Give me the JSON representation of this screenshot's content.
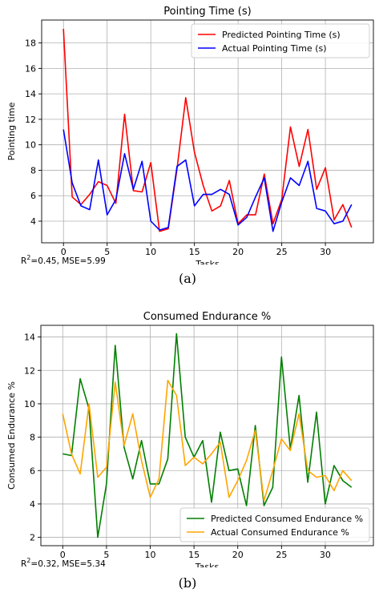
{
  "chart_data": [
    {
      "type": "line",
      "title": "Pointing Time (s)",
      "xlabel": "Tasks",
      "ylabel": "Pointing time",
      "xlim": [
        -2.5,
        35.5
      ],
      "ylim": [
        2.3,
        19.8
      ],
      "xticks": [
        0,
        5,
        10,
        15,
        20,
        25,
        30
      ],
      "yticks": [
        4,
        6,
        8,
        10,
        12,
        14,
        16,
        18
      ],
      "grid": true,
      "legend_position": "top-right",
      "x": [
        0,
        1,
        2,
        3,
        4,
        5,
        6,
        7,
        8,
        9,
        10,
        11,
        12,
        13,
        14,
        15,
        16,
        17,
        18,
        19,
        20,
        21,
        22,
        23,
        24,
        25,
        26,
        27,
        28,
        29,
        30,
        31,
        32,
        33
      ],
      "series": [
        {
          "name": "Predicted Pointing Time (s)",
          "color": "#ff0000",
          "values": [
            19.1,
            5.9,
            5.3,
            6.1,
            7.1,
            6.8,
            5.4,
            12.4,
            6.4,
            6.3,
            8.6,
            3.2,
            3.4,
            8.1,
            13.7,
            9.4,
            6.8,
            4.8,
            5.2,
            7.2,
            3.8,
            4.5,
            4.5,
            7.7,
            3.8,
            5.7,
            11.4,
            8.3,
            11.2,
            6.5,
            8.2,
            4.1,
            5.3,
            3.5
          ]
        },
        {
          "name": "Actual Pointing Time (s)",
          "color": "#0000ff",
          "values": [
            11.2,
            7.0,
            5.2,
            4.9,
            8.8,
            4.5,
            5.7,
            9.3,
            6.5,
            8.7,
            4.0,
            3.3,
            3.5,
            8.3,
            8.8,
            5.2,
            6.1,
            6.1,
            6.5,
            6.1,
            3.7,
            4.3,
            5.9,
            7.4,
            3.2,
            5.5,
            7.4,
            6.8,
            8.7,
            5.0,
            4.8,
            3.8,
            4.0,
            5.3
          ]
        }
      ],
      "stats": {
        "r2_label": "R",
        "r2_exp": "2",
        "r2_value": "=0.45,  MSE=5.99"
      },
      "caption": "(a)"
    },
    {
      "type": "line",
      "title": "Consumed Endurance %",
      "xlabel": "Tasks",
      "ylabel": "Consumed Endurance %",
      "xlim": [
        -2.5,
        35.5
      ],
      "ylim": [
        1.5,
        14.7
      ],
      "xticks": [
        0,
        5,
        10,
        15,
        20,
        25,
        30
      ],
      "yticks": [
        2,
        4,
        6,
        8,
        10,
        12,
        14
      ],
      "grid": true,
      "legend_position": "bottom-right",
      "x": [
        0,
        1,
        2,
        3,
        4,
        5,
        6,
        7,
        8,
        9,
        10,
        11,
        12,
        13,
        14,
        15,
        16,
        17,
        18,
        19,
        20,
        21,
        22,
        23,
        24,
        25,
        26,
        27,
        28,
        29,
        30,
        31,
        32,
        33
      ],
      "series": [
        {
          "name": "Predicted Consumed Endurance %",
          "color": "#007f00",
          "values": [
            7.0,
            6.9,
            11.5,
            9.7,
            2.0,
            5.2,
            13.5,
            7.4,
            5.5,
            7.8,
            5.2,
            5.2,
            6.7,
            14.2,
            8.0,
            6.8,
            7.8,
            4.1,
            8.3,
            6.0,
            6.1,
            3.9,
            8.7,
            3.9,
            5.0,
            12.8,
            7.3,
            10.5,
            5.3,
            9.5,
            4.0,
            6.3,
            5.4,
            5.0
          ]
        },
        {
          "name": "Actual Consumed Endurance %",
          "color": "#ffa500",
          "values": [
            9.4,
            7.0,
            5.8,
            10.0,
            5.6,
            6.2,
            11.3,
            7.5,
            9.4,
            6.6,
            4.4,
            5.5,
            11.4,
            10.5,
            6.3,
            6.8,
            6.4,
            7.0,
            7.7,
            4.4,
            5.4,
            6.6,
            8.4,
            4.2,
            6.0,
            7.9,
            7.2,
            9.4,
            6.0,
            5.6,
            5.7,
            4.8,
            6.0,
            5.4
          ]
        }
      ],
      "stats": {
        "r2_label": "R",
        "r2_exp": "2",
        "r2_value": "=0.32,  MSE=5.34"
      },
      "caption": "(b)"
    }
  ]
}
